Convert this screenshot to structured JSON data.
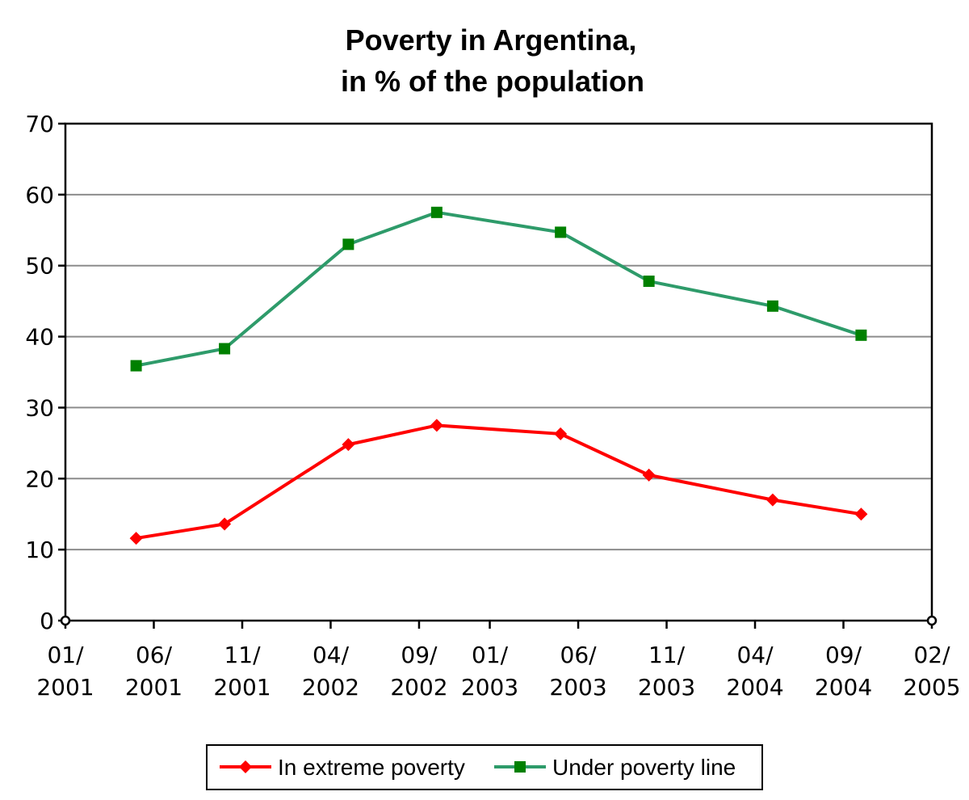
{
  "chart_data": {
    "type": "line",
    "title": "Poverty in Argentina,",
    "subtitle": "in % of the population",
    "xlabel": "",
    "ylabel": "",
    "x_tick_labels": [
      [
        "01/",
        "2001"
      ],
      [
        "06/",
        "2001"
      ],
      [
        "11/",
        "2001"
      ],
      [
        "04/",
        "2002"
      ],
      [
        "09/",
        "2002"
      ],
      [
        "01/",
        "2003"
      ],
      [
        "06/",
        "2003"
      ],
      [
        "11/",
        "2003"
      ],
      [
        "04/",
        "2004"
      ],
      [
        "09/",
        "2004"
      ],
      [
        "02/",
        "2005"
      ]
    ],
    "x_tick_dates": [
      "2001-01",
      "2001-06",
      "2001-11",
      "2002-04",
      "2002-09",
      "2003-01",
      "2003-06",
      "2003-11",
      "2004-04",
      "2004-09",
      "2005-02"
    ],
    "xlim": [
      "2001-01",
      "2005-02"
    ],
    "ylim": [
      0,
      70
    ],
    "y_ticks": [
      0,
      10,
      20,
      30,
      40,
      50,
      60,
      70
    ],
    "grid": true,
    "legend": "bottom",
    "x": [
      "2001-05",
      "2001-10",
      "2002-05",
      "2002-10",
      "2003-05",
      "2003-10",
      "2004-05",
      "2004-10"
    ],
    "series": [
      {
        "name": "In extreme poverty",
        "color": "#ff0000",
        "marker": "diamond",
        "values": [
          11.6,
          13.6,
          24.8,
          27.5,
          26.3,
          20.5,
          17.0,
          15.0
        ]
      },
      {
        "name": "Under poverty line",
        "color": "#2e9b6a",
        "marker_color": "#008000",
        "marker": "square",
        "values": [
          35.9,
          38.3,
          53.0,
          57.5,
          54.7,
          47.8,
          44.3,
          40.2
        ]
      }
    ]
  }
}
